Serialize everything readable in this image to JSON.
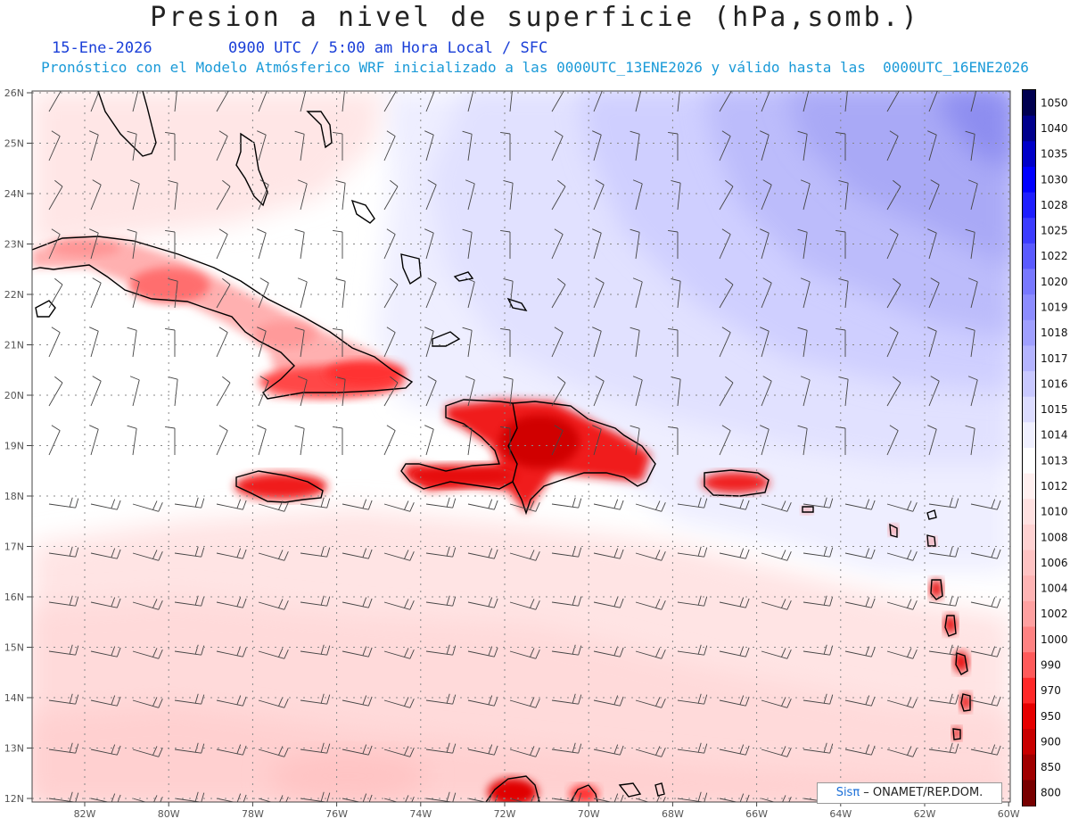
{
  "header": {
    "title": "Presion a nivel de superficie (hPa,somb.)",
    "date": "15-Ene-2026",
    "time_info": "0900 UTC / 5:00 am Hora Local / SFC",
    "model_info": "Pronóstico con el Modelo Atmósferico WRF inicializado a las 0000UTC_13ENE2026 y válido hasta las  0000UTC_16ENE2026"
  },
  "map": {
    "lat_labels": [
      "26N",
      "25N",
      "24N",
      "23N",
      "22N",
      "21N",
      "20N",
      "19N",
      "18N",
      "17N",
      "16N",
      "15N",
      "14N",
      "13N",
      "12N"
    ],
    "lon_labels": [
      "82W",
      "80W",
      "78W",
      "76W",
      "74W",
      "72W",
      "70W",
      "68W",
      "66W",
      "64W",
      "62W",
      "60W"
    ]
  },
  "colorbar": {
    "levels": [
      "1050",
      "1040",
      "1035",
      "1030",
      "1028",
      "1025",
      "1022",
      "1020",
      "1019",
      "1018",
      "1017",
      "1016",
      "1015",
      "1014",
      "1013",
      "1012",
      "1010",
      "1008",
      "1006",
      "1004",
      "1002",
      "1000",
      "990",
      "970",
      "950",
      "900",
      "850",
      "800"
    ],
    "colors": [
      "#000050",
      "#00008c",
      "#0000c8",
      "#0000ff",
      "#1e1eff",
      "#3c3cff",
      "#5a5aff",
      "#7878ff",
      "#8c8cff",
      "#a0a0ff",
      "#b4b4ff",
      "#c8c8ff",
      "#dcdcff",
      "#f0f0ff",
      "#ffffff",
      "#fff0f0",
      "#ffe1e1",
      "#ffd2d2",
      "#ffc3c3",
      "#ffb4b4",
      "#ffa0a0",
      "#ff8282",
      "#ff5a5a",
      "#ff2828",
      "#e60000",
      "#c80000",
      "#a00000",
      "#780000"
    ]
  },
  "credit": {
    "brand": "Sisπ",
    "text": " – ONAMET/REP.DOM."
  }
}
